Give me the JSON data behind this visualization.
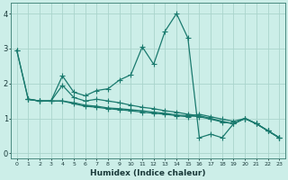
{
  "xlabel": "Humidex (Indice chaleur)",
  "bg_color": "#cceee8",
  "line_color": "#1a7a6e",
  "grid_color": "#aad4cc",
  "xlim": [
    -0.5,
    23.5
  ],
  "ylim": [
    -0.15,
    4.3
  ],
  "xticks": [
    0,
    1,
    2,
    3,
    4,
    5,
    6,
    7,
    8,
    9,
    10,
    11,
    12,
    13,
    14,
    15,
    16,
    17,
    18,
    19,
    20,
    21,
    22,
    23
  ],
  "yticks": [
    0,
    1,
    2,
    3,
    4
  ],
  "series1": [
    [
      0,
      2.95
    ],
    [
      1,
      1.55
    ],
    [
      2,
      1.5
    ],
    [
      3,
      1.5
    ],
    [
      4,
      2.22
    ],
    [
      5,
      1.75
    ],
    [
      6,
      1.65
    ],
    [
      7,
      1.8
    ],
    [
      8,
      1.85
    ],
    [
      9,
      2.1
    ],
    [
      10,
      2.25
    ],
    [
      11,
      3.05
    ],
    [
      12,
      2.55
    ],
    [
      13,
      3.5
    ],
    [
      14,
      4.0
    ],
    [
      15,
      3.3
    ],
    [
      16,
      0.45
    ],
    [
      17,
      0.55
    ],
    [
      18,
      0.45
    ],
    [
      19,
      0.85
    ],
    [
      20,
      1.0
    ],
    [
      21,
      0.85
    ],
    [
      22,
      0.65
    ],
    [
      23,
      0.45
    ]
  ],
  "series2": [
    [
      0,
      2.95
    ],
    [
      1,
      1.55
    ],
    [
      2,
      1.5
    ],
    [
      3,
      1.5
    ],
    [
      4,
      1.95
    ],
    [
      5,
      1.6
    ],
    [
      6,
      1.5
    ],
    [
      7,
      1.55
    ],
    [
      8,
      1.5
    ],
    [
      9,
      1.45
    ],
    [
      10,
      1.38
    ],
    [
      11,
      1.32
    ],
    [
      12,
      1.28
    ],
    [
      13,
      1.22
    ],
    [
      14,
      1.18
    ],
    [
      15,
      1.12
    ],
    [
      16,
      1.08
    ],
    [
      17,
      1.0
    ],
    [
      18,
      0.92
    ],
    [
      19,
      0.85
    ],
    [
      20,
      1.0
    ],
    [
      21,
      0.85
    ],
    [
      22,
      0.65
    ],
    [
      23,
      0.45
    ]
  ],
  "series3": [
    [
      1,
      1.55
    ],
    [
      2,
      1.5
    ],
    [
      3,
      1.5
    ],
    [
      4,
      1.5
    ],
    [
      5,
      1.45
    ],
    [
      6,
      1.38
    ],
    [
      7,
      1.35
    ],
    [
      8,
      1.3
    ],
    [
      9,
      1.28
    ],
    [
      10,
      1.25
    ],
    [
      11,
      1.22
    ],
    [
      12,
      1.18
    ],
    [
      13,
      1.15
    ],
    [
      14,
      1.1
    ],
    [
      15,
      1.08
    ],
    [
      16,
      1.05
    ],
    [
      17,
      0.98
    ],
    [
      18,
      0.9
    ],
    [
      19,
      0.85
    ],
    [
      20,
      1.0
    ],
    [
      21,
      0.85
    ],
    [
      22,
      0.65
    ],
    [
      23,
      0.45
    ]
  ],
  "series4": [
    [
      1,
      1.55
    ],
    [
      2,
      1.5
    ],
    [
      3,
      1.5
    ],
    [
      4,
      1.5
    ],
    [
      5,
      1.42
    ],
    [
      6,
      1.35
    ],
    [
      7,
      1.32
    ],
    [
      8,
      1.28
    ],
    [
      9,
      1.25
    ],
    [
      10,
      1.22
    ],
    [
      11,
      1.18
    ],
    [
      12,
      1.15
    ],
    [
      13,
      1.12
    ],
    [
      14,
      1.08
    ],
    [
      15,
      1.05
    ],
    [
      16,
      1.12
    ],
    [
      17,
      1.05
    ],
    [
      18,
      0.98
    ],
    [
      19,
      0.92
    ],
    [
      20,
      1.0
    ],
    [
      21,
      0.85
    ],
    [
      22,
      0.65
    ],
    [
      23,
      0.45
    ]
  ]
}
